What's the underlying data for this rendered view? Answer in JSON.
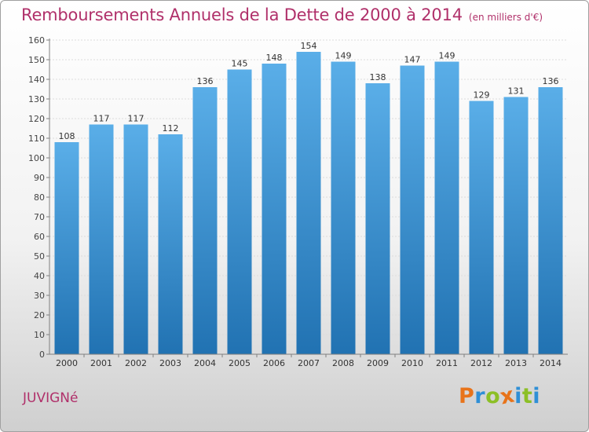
{
  "title": "Remboursements Annuels de la Dette de 2000 à 2014",
  "unit": "(en milliers d'€)",
  "commune": "JUVIGNé",
  "logo": {
    "letters": [
      "P",
      "r",
      "o",
      "x",
      "i",
      "t",
      "i"
    ],
    "colors": [
      "#e8731a",
      "#2f8fd6",
      "#8cbf26",
      "#e8731a",
      "#2f8fd6",
      "#8cbf26",
      "#2f8fd6"
    ]
  },
  "colors": {
    "bar_light": "#5aaee8",
    "bar_dark": "#2172b2",
    "title": "#b0306a"
  },
  "chart_data": {
    "type": "bar",
    "categories": [
      "2000",
      "2001",
      "2002",
      "2003",
      "2004",
      "2005",
      "2006",
      "2007",
      "2008",
      "2009",
      "2010",
      "2011",
      "2012",
      "2013",
      "2014"
    ],
    "values": [
      108,
      117,
      117,
      112,
      136,
      145,
      148,
      154,
      149,
      138,
      147,
      149,
      129,
      131,
      136
    ],
    "ylim": [
      0,
      160
    ],
    "yticks": [
      0,
      10,
      20,
      30,
      40,
      50,
      60,
      70,
      80,
      90,
      100,
      110,
      120,
      130,
      140,
      150,
      160
    ],
    "grid": true,
    "legend": "none"
  }
}
